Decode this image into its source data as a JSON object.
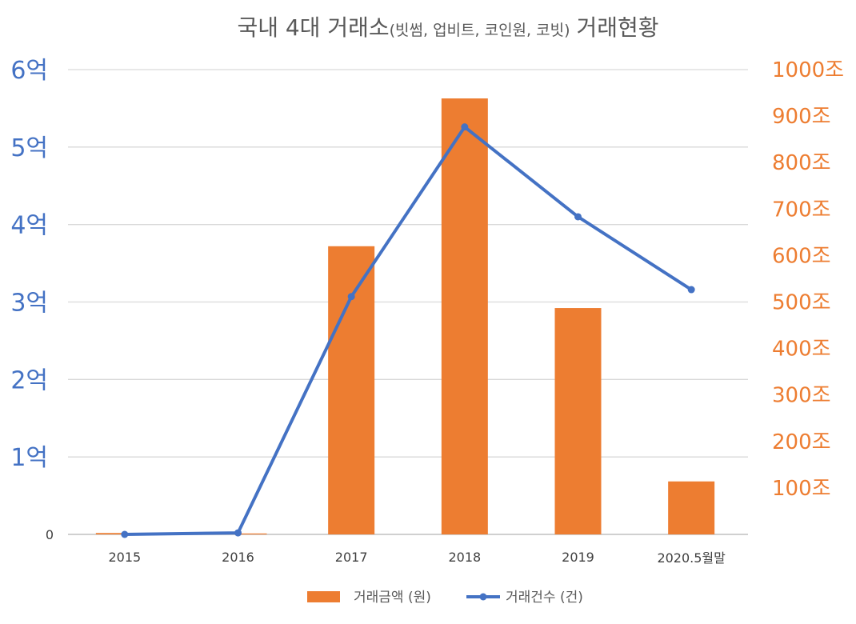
{
  "chart_data": {
    "type": "bar",
    "title_parts": [
      "국내 4대 거래소",
      "(빗썸, 업비트, 코인원, 코빗)",
      "거래현황"
    ],
    "categories": [
      "2015",
      "2016",
      "2017",
      "2018",
      "2019",
      "2020.5월말"
    ],
    "left_axis": {
      "label": "거래건수",
      "ticks": [
        "0",
        "1억",
        "2억",
        "3억",
        "4억",
        "5억",
        "6억"
      ],
      "range": [
        0,
        6
      ],
      "unit": "억"
    },
    "right_axis": {
      "label": "거래금액",
      "ticks": [
        "100조",
        "200조",
        "300조",
        "400조",
        "500조",
        "600조",
        "700조",
        "800조",
        "900조",
        "1000조"
      ],
      "tick_values": [
        100,
        200,
        300,
        400,
        500,
        600,
        700,
        800,
        900,
        1000
      ],
      "range": [
        0,
        1000
      ],
      "unit": "조"
    },
    "series": [
      {
        "name": "거래금액 (원)",
        "type": "bar",
        "axis": "right",
        "color": "#ed7d31",
        "values": [
          3,
          2,
          620,
          938,
          487,
          114
        ]
      },
      {
        "name": "거래건수 (건)",
        "type": "line",
        "axis": "left",
        "color": "#4472c4",
        "values": [
          0.0,
          0.02,
          3.07,
          5.26,
          4.1,
          3.16
        ]
      }
    ],
    "grid": true,
    "legend_position": "bottom"
  }
}
